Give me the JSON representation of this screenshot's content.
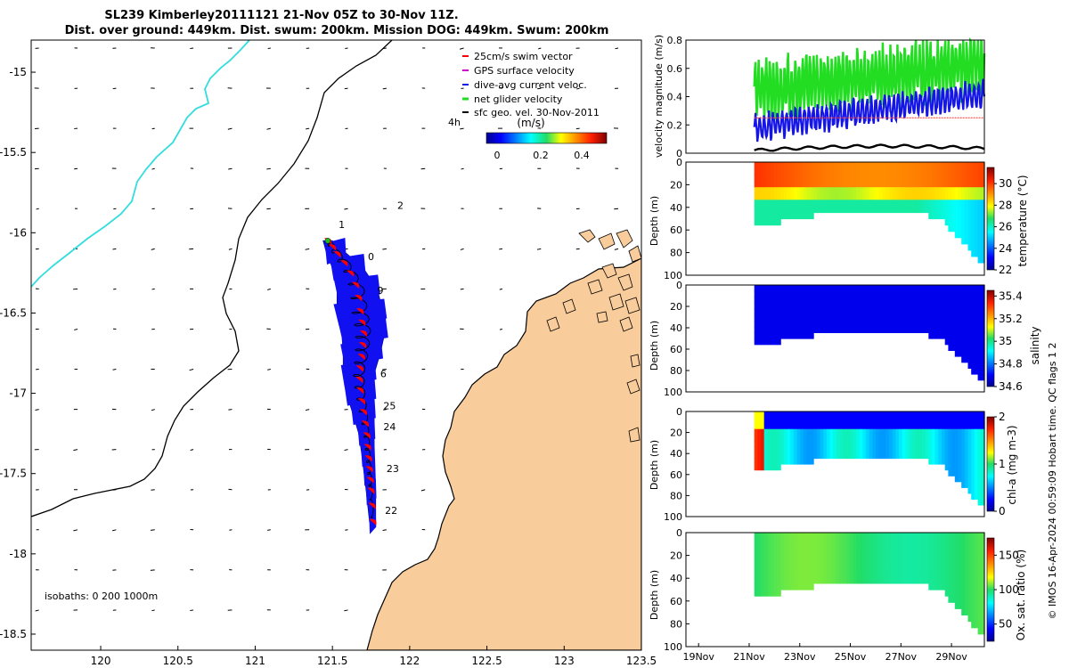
{
  "title": {
    "line1": "SL239 Kimberley20111121 21-Nov 05Z to 30-Nov 11Z.",
    "line2": "Dist. over ground: 449km. Dist. swum: 200km. Mission DOG: 449km. Swum: 200km"
  },
  "credit": "© IMOS 16-Apr-2024 00:59:09 Hobart time. QC flags 1  2",
  "colors": {
    "land": "#f9cc9c",
    "glider_path": "#1010f0",
    "swim_vector": "#ff0000",
    "net_velocity": "#22dd22",
    "dive_avg": "#1515e8",
    "geo_velocity": "#000000",
    "coastline_cyan": "#33dddd"
  },
  "chart_data": [
    {
      "type": "scatter",
      "name": "map",
      "xlim": [
        119.55,
        123.5
      ],
      "ylim": [
        -18.6,
        -14.8
      ],
      "xticks": [
        "120",
        "120.5",
        "121",
        "121.5",
        "122",
        "122.5",
        "123",
        "123.5"
      ],
      "yticks": [
        "-15",
        "-15.5",
        "-16",
        "-16.5",
        "-17",
        "-17.5",
        "-18",
        "-18.5"
      ],
      "legend": {
        "entries": [
          {
            "label": "25cm/s swim vector",
            "color": "#ff0000"
          },
          {
            "label": "GPS surface velocity",
            "color": "#cc00cc"
          },
          {
            "label": "dive-avg current veloc.",
            "color": "#1515e8"
          },
          {
            "label": "net glider velocity",
            "color": "#22dd22"
          },
          {
            "label": "sfc geo. vel. 30-Nov-2011",
            "color": "#000000"
          }
        ],
        "units": "(m/s)",
        "time_label": "4h",
        "colorbar_ticks": [
          "0",
          "0.2",
          "0.4"
        ]
      },
      "isobaths_label": "isobaths: 0   200  1000m",
      "day_labels": [
        {
          "text": "2",
          "lon": 121.92,
          "lat": -15.85
        },
        {
          "text": "1",
          "lon": 121.54,
          "lat": -15.97
        },
        {
          "text": "0",
          "lon": 121.73,
          "lat": -16.17
        },
        {
          "text": "9",
          "lon": 121.79,
          "lat": -16.38
        },
        {
          "text": "6",
          "lon": 121.81,
          "lat": -16.9
        },
        {
          "text": "25",
          "lon": 121.83,
          "lat": -17.1
        },
        {
          "text": "24",
          "lon": 121.83,
          "lat": -17.23
        },
        {
          "text": "23",
          "lon": 121.85,
          "lat": -17.49
        },
        {
          "text": "22",
          "lon": 121.84,
          "lat": -17.75
        }
      ]
    },
    {
      "type": "line",
      "name": "velocity",
      "ylabel": "velocity magnitude (m/s)",
      "ylim": [
        0,
        0.8
      ],
      "yticks": [
        "0",
        "0.2",
        "0.4",
        "0.6",
        "0.8"
      ],
      "xlim_day": [
        18.5,
        30.3
      ],
      "series": [
        {
          "name": "dive-avg current",
          "color": "#1515e8",
          "mean_start": 0.18,
          "mean_end": 0.42,
          "amplitude": 0.08
        },
        {
          "name": "net glider velocity",
          "color": "#22dd22",
          "mean_start": 0.45,
          "mean_end": 0.62,
          "amplitude": 0.18
        },
        {
          "name": "swim",
          "color": "#ff4444",
          "value": 0.25
        },
        {
          "name": "geostrophic",
          "color": "#000000",
          "start": 0.02,
          "end": 0.05
        }
      ]
    },
    {
      "type": "heatmap",
      "name": "temperature",
      "ylabel": "Depth (m)",
      "cbar_label": "temperature (°C)",
      "cbar_ticks": [
        "22",
        "24",
        "26",
        "28",
        "30"
      ],
      "clim": [
        22,
        31.5
      ],
      "yticks": [
        "0",
        "20",
        "40",
        "60",
        "80",
        "100"
      ]
    },
    {
      "type": "heatmap",
      "name": "salinity",
      "ylabel": "Depth (m)",
      "cbar_label": "salinity",
      "cbar_ticks": [
        "34.6",
        "34.8",
        "35",
        "35.2",
        "35.4"
      ],
      "clim": [
        34.6,
        35.45
      ],
      "yticks": [
        "0",
        "20",
        "40",
        "60",
        "80",
        "100"
      ]
    },
    {
      "type": "heatmap",
      "name": "chl-a",
      "ylabel": "Depth (m)",
      "cbar_label": "chl-a (mg m-3)",
      "cbar_ticks": [
        "0",
        "1",
        "2"
      ],
      "clim": [
        0,
        2
      ],
      "yticks": [
        "0",
        "20",
        "40",
        "60",
        "80",
        "100"
      ]
    },
    {
      "type": "heatmap",
      "name": "oxygen",
      "ylabel": "Depth (m)",
      "cbar_label": "Ox. sat. ratio (%)",
      "cbar_ticks": [
        "50",
        "100",
        "150"
      ],
      "clim": [
        25,
        175
      ],
      "yticks": [
        "0",
        "20",
        "40",
        "60",
        "80",
        "100"
      ],
      "xticks": [
        "19Nov",
        "21Nov",
        "23Nov",
        "25Nov",
        "27Nov",
        "29Nov"
      ]
    }
  ]
}
